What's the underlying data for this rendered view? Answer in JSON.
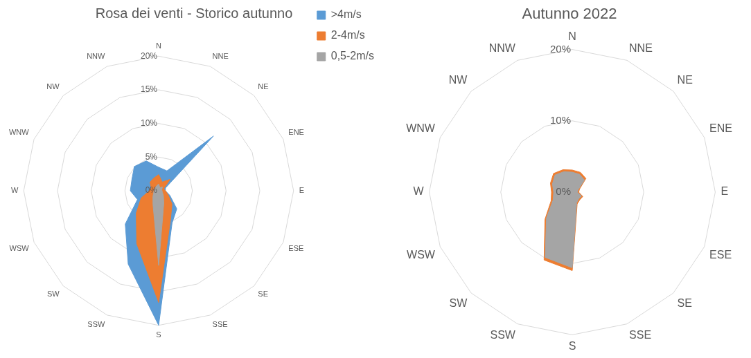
{
  "chart_data": [
    {
      "type": "radar",
      "title": "Rosa dei venti - Storico autunno",
      "categories": [
        "N",
        "NNE",
        "NE",
        "ENE",
        "E",
        "ESE",
        "SE",
        "SSE",
        "S",
        "SSW",
        "SW",
        "WSW",
        "W",
        "WNW",
        "NW",
        "NNW"
      ],
      "series": [
        {
          "name": ">4m/s",
          "color": "#5b9bd5",
          "values": [
            3.5,
            3.2,
            11.5,
            1.1,
            1,
            1.8,
            3.8,
            5.2,
            20,
            11.8,
            7,
            3.4,
            4.2,
            4.3,
            5.1,
            4.8
          ]
        },
        {
          "name": "2-4m/s",
          "color": "#ed7d31",
          "values": [
            2.4,
            1.4,
            2.4,
            0.8,
            1,
            1.5,
            2.8,
            4.6,
            16.6,
            8.5,
            4.7,
            2.8,
            1.4,
            1.2,
            1.8,
            2
          ]
        },
        {
          "name": "0,5-2m/s",
          "color": "#a5a5a5",
          "values": [
            1,
            0.5,
            0.8,
            0.5,
            0.5,
            0.6,
            1,
            2,
            11.1,
            2.2,
            1.2,
            0.8,
            0.7,
            0.6,
            0.7,
            0.8
          ]
        }
      ],
      "ylim": [
        0,
        20
      ],
      "yticks": [
        {
          "value": 0,
          "label": "0%"
        },
        {
          "value": 5,
          "label": "5%"
        },
        {
          "value": 10,
          "label": "10%"
        },
        {
          "value": 15,
          "label": "15%"
        },
        {
          "value": 20,
          "label": "20%"
        }
      ],
      "grid": true,
      "legend": "top right"
    },
    {
      "type": "radar",
      "title": "Autunno 2022",
      "categories": [
        "N",
        "NNE",
        "NE",
        "ENE",
        "E",
        "ESE",
        "SE",
        "SSE",
        "S",
        "SSW",
        "SW",
        "WSW",
        "W",
        "WNW",
        "NW",
        "NNW"
      ],
      "series": [
        {
          "color": "#ed7d31",
          "values": [
            3.1,
            3,
            2.7,
            1.1,
            0.9,
            1.6,
            1.5,
            1.8,
            11,
            10.3,
            5.4,
            3.2,
            2.9,
            3.3,
            3.7,
            3.4
          ]
        },
        {
          "color": "#a5a5a5",
          "values": [
            2.8,
            2.7,
            2.4,
            0.9,
            0.7,
            1.4,
            1.3,
            1.6,
            10.6,
            9.9,
            5.1,
            2.9,
            2.6,
            3,
            3.4,
            3.1
          ]
        }
      ],
      "ylim": [
        0,
        20
      ],
      "yticks": [
        {
          "value": 0,
          "label": "0%"
        },
        {
          "value": 10,
          "label": "10%"
        },
        {
          "value": 20,
          "label": "20%"
        }
      ],
      "grid": true
    }
  ]
}
